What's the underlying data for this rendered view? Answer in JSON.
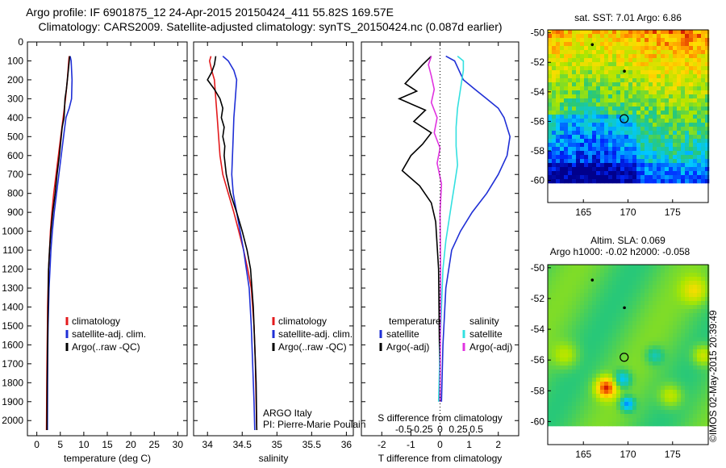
{
  "header": {
    "line1": "Argo profile: IF 6901875_12 24-Apr-2015 20150424_411 55.82S 169.57E",
    "line2": "Climatology: CARS2009. Satellite-adjusted climatology: synTS_20150424.nc (0.087d earlier)"
  },
  "colors": {
    "climatology": "#e31a1c",
    "satellite": "#1f2fd6",
    "argo": "#000000",
    "satellite_salinity": "#33e0e0",
    "argo_salinity_diff": "#e033e0"
  },
  "credit": {
    "argo_country": "ARGO Italy",
    "pi": "PI: Pierre-Marie Poulain",
    "watermark": "©IMOS 02-May-2015 20:39:49"
  },
  "chart_data": [
    {
      "type": "line",
      "name": "temperature-profile",
      "xlabel": "temperature (deg C)",
      "ylabel": "",
      "xlim": [
        -2,
        32
      ],
      "ylim": [
        2080,
        0
      ],
      "y_reversed": true,
      "xticks": [
        0,
        5,
        10,
        15,
        20,
        25,
        30
      ],
      "yticks": [
        0,
        100,
        200,
        300,
        400,
        500,
        600,
        700,
        800,
        900,
        1000,
        1100,
        1200,
        1300,
        1400,
        1500,
        1600,
        1700,
        1800,
        1900,
        2000
      ],
      "legend": [
        "climatology",
        "satellite-adj. clim.",
        "Argo(..raw -QC)"
      ],
      "legend_position": "center",
      "series": [
        {
          "name": "climatology",
          "color": "#e31a1c",
          "x": [
            6.9,
            6.8,
            6.5,
            6.1,
            5.6,
            5.1,
            4.6,
            4.1,
            3.6,
            3.2,
            2.9,
            2.7,
            2.5,
            2.4,
            2.3,
            2.25,
            2.2,
            2.15,
            2.1,
            2.05
          ],
          "y": [
            75,
            100,
            200,
            300,
            400,
            500,
            600,
            700,
            800,
            900,
            1000,
            1100,
            1200,
            1300,
            1400,
            1500,
            1600,
            1700,
            1850,
            2050
          ]
        },
        {
          "name": "satellite-adj. clim.",
          "color": "#1f2fd6",
          "x": [
            7.1,
            7.3,
            7.5,
            7.4,
            6.9,
            6.2,
            5.7,
            5.2,
            4.7,
            4.2,
            3.7,
            3.3,
            3.0,
            2.8,
            2.6,
            2.5,
            2.4,
            2.35,
            2.3,
            2.25
          ],
          "y": [
            75,
            100,
            200,
            300,
            350,
            400,
            500,
            600,
            700,
            800,
            900,
            1000,
            1100,
            1200,
            1300,
            1400,
            1500,
            1600,
            1800,
            2050
          ]
        },
        {
          "name": "Argo(..raw -QC)",
          "color": "#000000",
          "x": [
            7.0,
            6.7,
            6.3,
            6.0,
            5.8,
            5.4,
            5.2,
            4.8,
            4.3,
            3.9,
            3.4,
            3.0,
            2.7,
            2.5,
            2.4,
            2.3,
            2.2,
            2.15
          ],
          "y": [
            75,
            150,
            250,
            300,
            400,
            450,
            500,
            600,
            700,
            800,
            900,
            1000,
            1100,
            1200,
            1400,
            1600,
            1800,
            2050
          ]
        }
      ]
    },
    {
      "type": "line",
      "name": "salinity-profile",
      "xlabel": "salinity",
      "xlim": [
        33.8,
        36.1
      ],
      "ylim": [
        2080,
        0
      ],
      "y_reversed": true,
      "xticks": [
        34,
        34.5,
        35,
        35.5,
        36
      ],
      "legend": [
        "climatology",
        "satellite-adj. clim.",
        "Argo(..raw -QC)"
      ],
      "legend_position": "center",
      "series": [
        {
          "name": "climatology",
          "color": "#e31a1c",
          "x": [
            34.05,
            34.03,
            34.06,
            34.1,
            34.12,
            34.14,
            34.16,
            34.18,
            34.22,
            34.3,
            34.38,
            34.45,
            34.52,
            34.58,
            34.63,
            34.67,
            34.69,
            34.7,
            34.71
          ],
          "y": [
            75,
            100,
            150,
            200,
            300,
            400,
            500,
            600,
            700,
            800,
            900,
            1000,
            1100,
            1200,
            1300,
            1500,
            1700,
            1900,
            2050
          ]
        },
        {
          "name": "satellite-adj. clim.",
          "color": "#1f2fd6",
          "x": [
            34.22,
            34.3,
            34.38,
            34.42,
            34.4,
            34.38,
            34.37,
            34.36,
            34.35,
            34.37,
            34.42,
            34.47,
            34.52,
            34.56,
            34.6,
            34.63,
            34.65,
            34.67,
            34.68
          ],
          "y": [
            75,
            100,
            150,
            200,
            300,
            400,
            500,
            600,
            700,
            800,
            900,
            1000,
            1100,
            1200,
            1300,
            1500,
            1700,
            1900,
            2050
          ]
        },
        {
          "name": "Argo(..raw -QC)",
          "color": "#000000",
          "x": [
            34.12,
            34.1,
            34.06,
            34.0,
            34.1,
            34.18,
            34.22,
            34.2,
            34.24,
            34.22,
            34.25,
            34.24,
            34.27,
            34.33,
            34.42,
            34.5,
            34.57,
            34.62,
            34.66,
            34.68,
            34.7,
            34.71
          ],
          "y": [
            75,
            120,
            160,
            200,
            250,
            300,
            350,
            400,
            450,
            500,
            550,
            600,
            700,
            800,
            900,
            1000,
            1100,
            1200,
            1400,
            1600,
            1800,
            2050
          ]
        }
      ]
    },
    {
      "type": "line",
      "name": "difference-profile",
      "xlabel": "T difference from climatology",
      "xlabel_top": "S difference from climatology",
      "xlim": [
        -2.7,
        2.7
      ],
      "ylim": [
        2080,
        0
      ],
      "y_reversed": true,
      "xticks": [
        -2,
        -1,
        0,
        1,
        2
      ],
      "xticks_top": [
        -0.5,
        -0.25,
        0,
        0.25,
        0.5
      ],
      "legend_left_title": "temperature",
      "legend_right_title": "salinity",
      "legend": [
        "satellite",
        "Argo(-adj)",
        "satellite",
        "Argo(-adj)"
      ],
      "series": [
        {
          "name": "satellite",
          "group": "temperature",
          "color": "#1f2fd6",
          "x": [
            0.2,
            0.5,
            0.8,
            1.2,
            1.6,
            2.0,
            2.2,
            2.4,
            2.3,
            2.0,
            1.6,
            1.1,
            0.7,
            0.4,
            0.2,
            0.1,
            0.05
          ],
          "y": [
            75,
            100,
            200,
            250,
            300,
            350,
            400,
            500,
            600,
            700,
            800,
            900,
            1000,
            1100,
            1300,
            1600,
            1900
          ]
        },
        {
          "name": "Argo(-adj)",
          "group": "temperature",
          "color": "#000000",
          "x": [
            -0.3,
            -0.6,
            -0.9,
            -1.2,
            -0.8,
            -1.4,
            -0.5,
            -0.9,
            -0.3,
            -0.6,
            -1.0,
            -1.3,
            -0.7,
            -0.3,
            -0.15,
            -0.05,
            0
          ],
          "y": [
            75,
            120,
            170,
            220,
            260,
            300,
            360,
            420,
            480,
            540,
            600,
            680,
            760,
            850,
            950,
            1200,
            1900
          ]
        },
        {
          "name": "satellite",
          "group": "salinity",
          "color": "#33e0e0",
          "x": [
            0.6,
            0.8,
            0.8,
            0.7,
            0.6,
            0.55,
            0.55,
            0.6,
            0.5,
            0.4,
            0.3,
            0.2,
            0.1,
            0.05,
            0.0,
            -0.05
          ],
          "y": [
            75,
            100,
            150,
            250,
            350,
            450,
            550,
            650,
            750,
            850,
            950,
            1050,
            1200,
            1400,
            1600,
            1900
          ]
        },
        {
          "name": "Argo(-adj)",
          "group": "salinity",
          "color": "#e033e0",
          "x": [
            -0.3,
            -0.4,
            -0.3,
            -0.2,
            -0.3,
            -0.1,
            -0.2,
            0.0,
            -0.1,
            0.05,
            0.0,
            0.02,
            0.0
          ],
          "y": [
            75,
            120,
            180,
            250,
            320,
            400,
            480,
            560,
            640,
            750,
            900,
            1200,
            1900
          ]
        }
      ]
    },
    {
      "type": "heatmap",
      "name": "sst-map",
      "title": "sat. SST: 7.01  Argo: 6.86",
      "xlim": [
        161,
        179
      ],
      "ylim": [
        -61.5,
        -49.8
      ],
      "data_extent_ymin": -60.1,
      "xticks": [
        165,
        170,
        175
      ],
      "yticks": [
        -50,
        -52,
        -54,
        -56,
        -58,
        -60
      ],
      "float_position": [
        169.57,
        -55.82
      ],
      "markers": [
        [
          166.0,
          -50.8
        ],
        [
          169.6,
          -52.6
        ]
      ]
    },
    {
      "type": "heatmap",
      "name": "sla-map",
      "title": "Altim. SLA: 0.069",
      "subtitle": "Argo h1000: -0.02  h2000: -0.058",
      "xlim": [
        161,
        179
      ],
      "ylim": [
        -61.5,
        -49.8
      ],
      "data_extent_ymin": -60.1,
      "xticks": [
        165,
        170,
        175
      ],
      "yticks": [
        -50,
        -52,
        -54,
        -56,
        -58,
        -60
      ],
      "float_position": [
        169.57,
        -55.82
      ],
      "markers": [
        [
          166.0,
          -50.8
        ],
        [
          169.6,
          -52.6
        ]
      ]
    }
  ]
}
